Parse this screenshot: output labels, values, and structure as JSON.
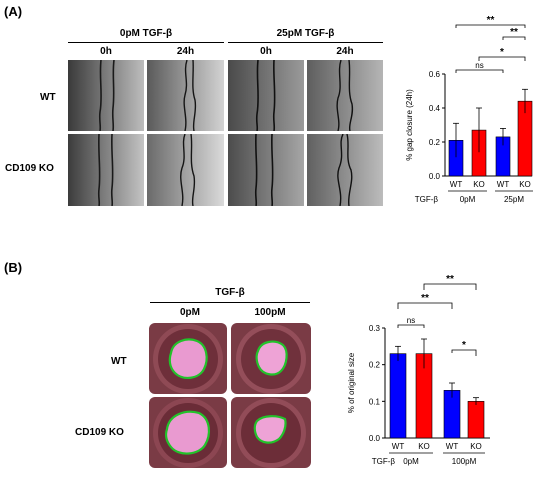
{
  "panelA": {
    "label": "(A)",
    "condition_headers": [
      "0pM TGF-β",
      "25pM TGF-β"
    ],
    "time_headers": [
      "0h",
      "24h",
      "0h",
      "24h"
    ],
    "row_labels": [
      "WT",
      "CD109 KO"
    ]
  },
  "panelB": {
    "label": "(B)",
    "group_header": "TGF-β",
    "dose_headers": [
      "0pM",
      "100pM"
    ],
    "row_labels": [
      "WT",
      "CD109 KO"
    ]
  },
  "chart_data": [
    {
      "type": "bar",
      "ylabel": "% gap closure (24h)",
      "ylim": [
        0,
        0.6
      ],
      "yticks": [
        "0.0",
        "0.2",
        "0.4",
        "0.6"
      ],
      "categories": [
        "WT",
        "KO",
        "WT",
        "KO"
      ],
      "group_row_label": "TGF-β",
      "groups": [
        "0pM",
        "25pM"
      ],
      "values": [
        0.21,
        0.27,
        0.23,
        0.44
      ],
      "errors": [
        0.1,
        0.13,
        0.05,
        0.07
      ],
      "colors": [
        "#0000ff",
        "#ff0000",
        "#0000ff",
        "#ff0000"
      ],
      "significance": [
        {
          "from": 0,
          "to": 2,
          "label": "ns"
        },
        {
          "from": 1,
          "to": 3,
          "label": "*"
        },
        {
          "from": 2,
          "to": 3,
          "label": "**"
        },
        {
          "from": 0,
          "to": 3,
          "label": "**"
        }
      ]
    },
    {
      "type": "bar",
      "ylabel": "% of original size",
      "ylim": [
        0,
        0.3
      ],
      "yticks": [
        "0.0",
        "0.1",
        "0.2",
        "0.3"
      ],
      "categories": [
        "WT",
        "KO",
        "WT",
        "KO"
      ],
      "group_row_label": "TGF-β",
      "groups": [
        "0pM",
        "100pM"
      ],
      "values": [
        0.23,
        0.23,
        0.13,
        0.1
      ],
      "errors": [
        0.02,
        0.04,
        0.02,
        0.01
      ],
      "colors": [
        "#0000ff",
        "#ff0000",
        "#0000ff",
        "#ff0000"
      ],
      "significance": [
        {
          "from": 0,
          "to": 1,
          "label": "ns"
        },
        {
          "from": 2,
          "to": 3,
          "label": "*"
        },
        {
          "from": 0,
          "to": 2,
          "label": "**"
        },
        {
          "from": 1,
          "to": 3,
          "label": "**"
        }
      ]
    }
  ]
}
